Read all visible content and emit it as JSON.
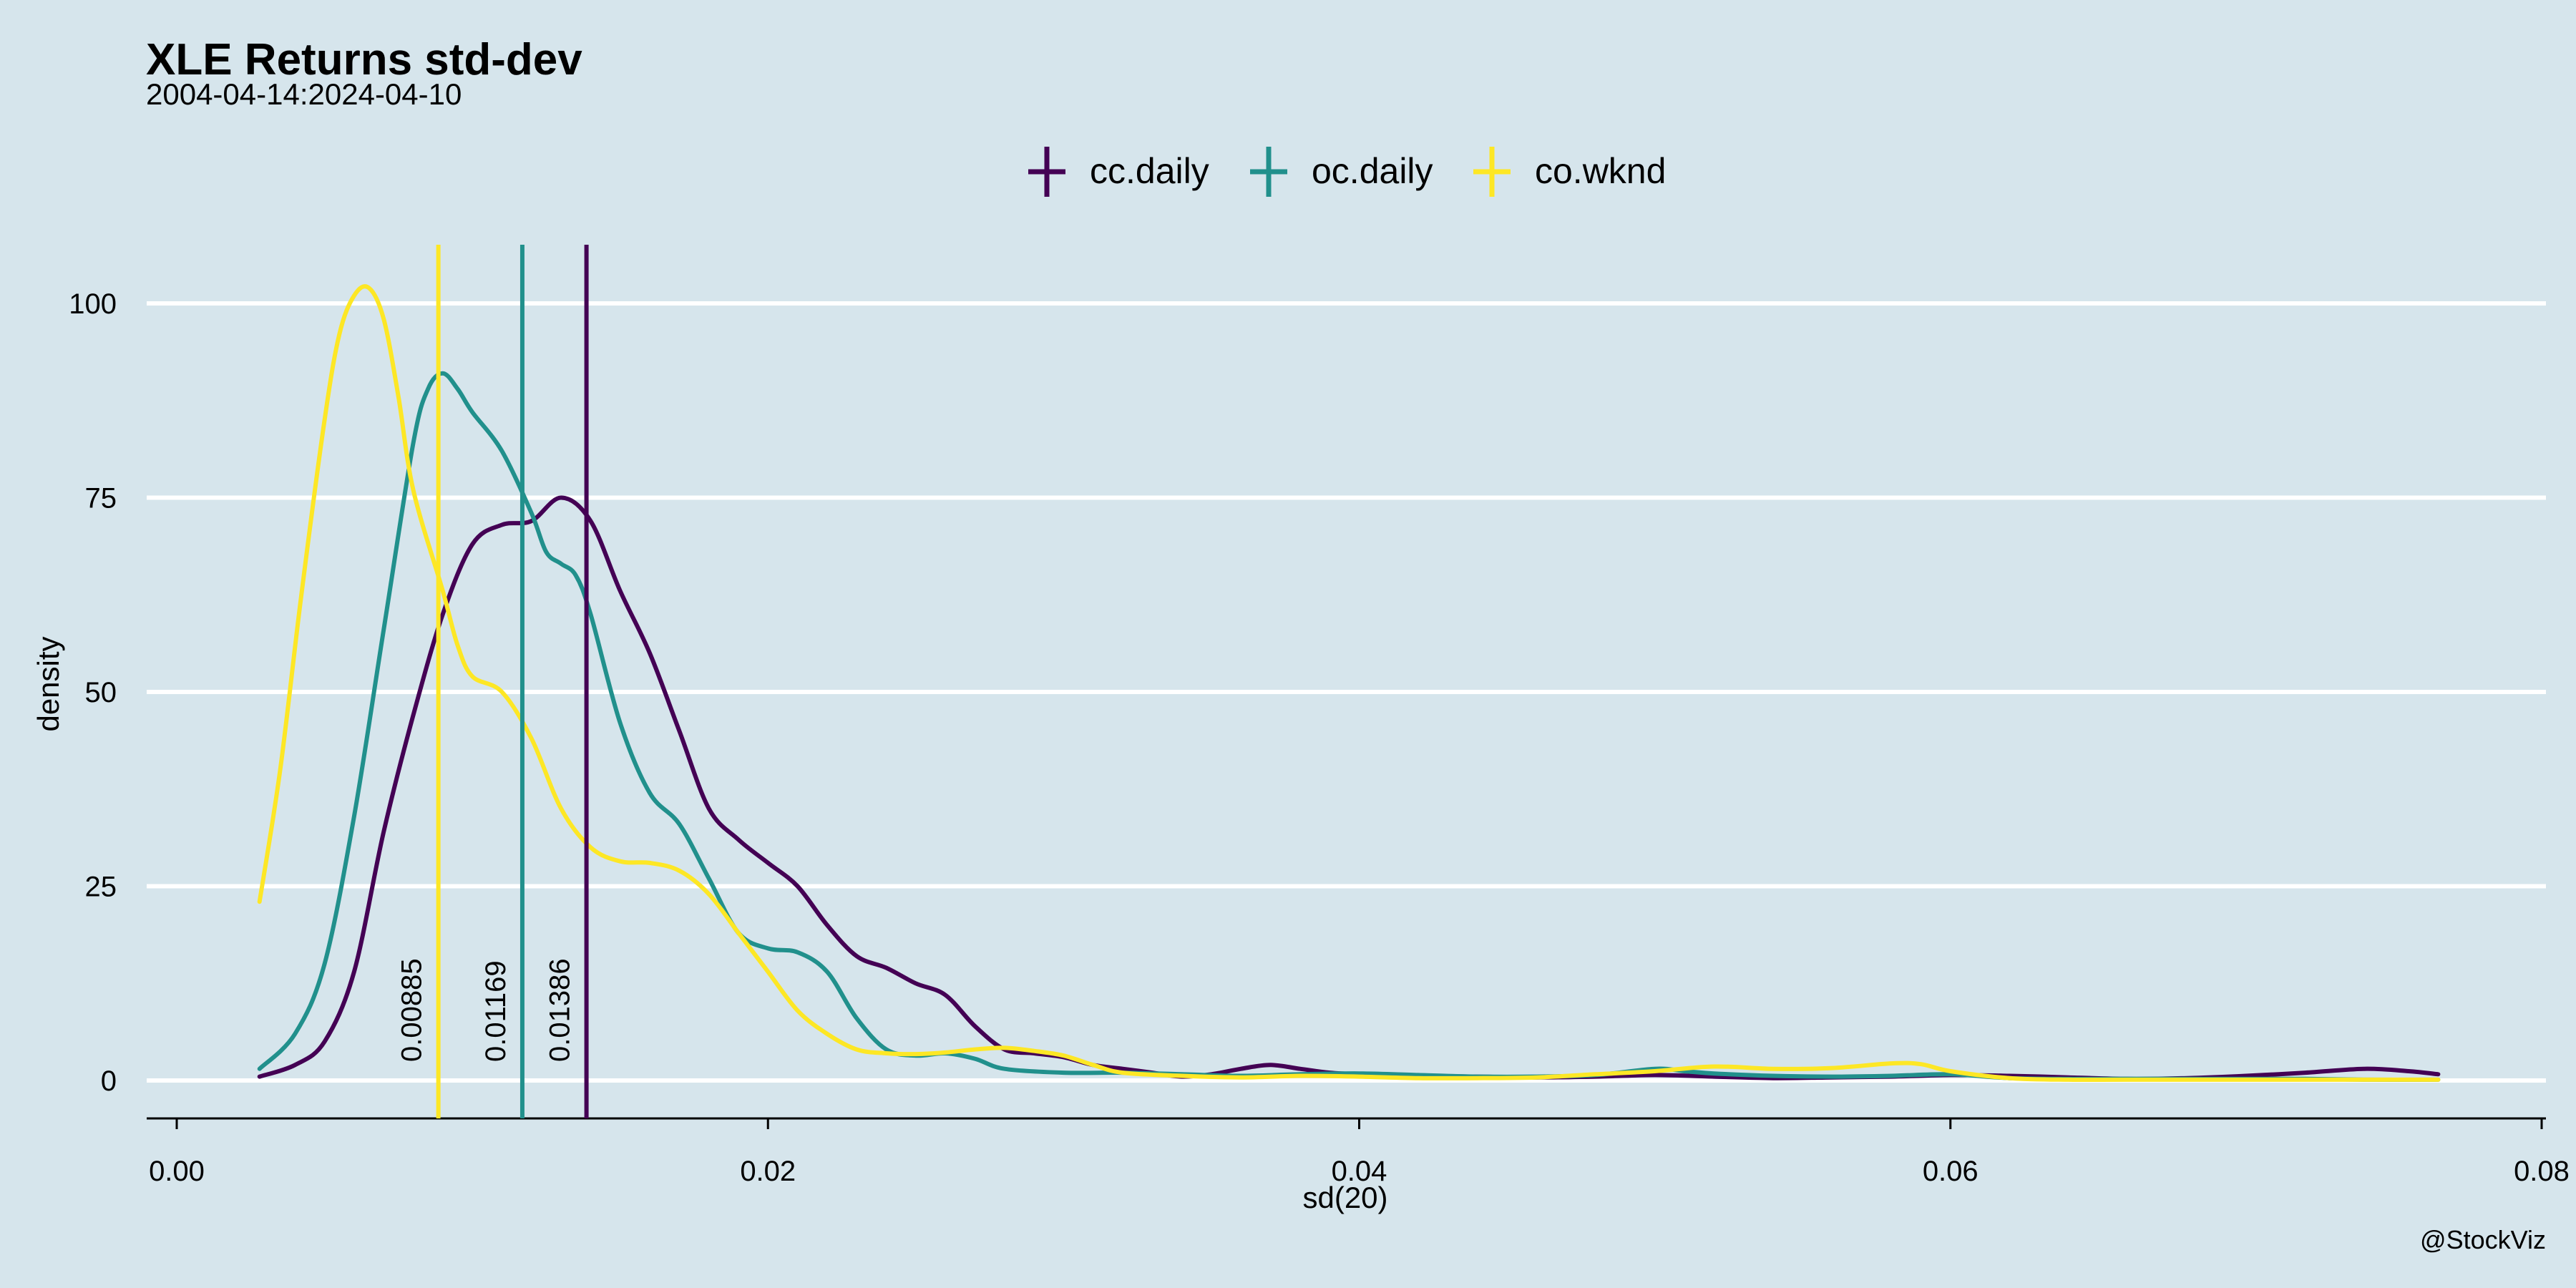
{
  "chart_data": {
    "type": "line",
    "title": "XLE Returns std-dev",
    "subtitle": "2004-04-14:2024-04-10",
    "xlabel": "sd(20)",
    "ylabel": "density",
    "caption": "@StockViz",
    "xlim": [
      0,
      0.08
    ],
    "ylim": [
      0,
      100
    ],
    "x_ticks": [
      0.0,
      0.02,
      0.04,
      0.06,
      0.08
    ],
    "x_tick_labels": [
      "0.00",
      "0.02",
      "0.04",
      "0.06",
      "0.08"
    ],
    "y_ticks": [
      0,
      25,
      50,
      75,
      100
    ],
    "y_tick_labels": [
      "0",
      "25",
      "50",
      "75",
      "100"
    ],
    "grid": "horizontal",
    "legend_position": "top",
    "series": [
      {
        "name": "cc.daily",
        "color": "#440154",
        "mean": 0.01386,
        "mean_label": "0.01386",
        "points": [
          [
            0.0028,
            0.5
          ],
          [
            0.004,
            2
          ],
          [
            0.005,
            5
          ],
          [
            0.006,
            14
          ],
          [
            0.007,
            32
          ],
          [
            0.008,
            47
          ],
          [
            0.009,
            60
          ],
          [
            0.01,
            69
          ],
          [
            0.011,
            71.5
          ],
          [
            0.012,
            72
          ],
          [
            0.013,
            75
          ],
          [
            0.014,
            72
          ],
          [
            0.015,
            63
          ],
          [
            0.016,
            55
          ],
          [
            0.017,
            45
          ],
          [
            0.018,
            35
          ],
          [
            0.019,
            31
          ],
          [
            0.02,
            28
          ],
          [
            0.021,
            25
          ],
          [
            0.022,
            20
          ],
          [
            0.023,
            16
          ],
          [
            0.024,
            14.5
          ],
          [
            0.025,
            12.5
          ],
          [
            0.026,
            11
          ],
          [
            0.027,
            7
          ],
          [
            0.028,
            4
          ],
          [
            0.029,
            3.5
          ],
          [
            0.03,
            3
          ],
          [
            0.031,
            2
          ],
          [
            0.032,
            1.5
          ],
          [
            0.033,
            1
          ],
          [
            0.034,
            0.5
          ],
          [
            0.035,
            0.8
          ],
          [
            0.036,
            1.5
          ],
          [
            0.037,
            2
          ],
          [
            0.038,
            1.5
          ],
          [
            0.039,
            1
          ],
          [
            0.04,
            0.8
          ],
          [
            0.042,
            0.6
          ],
          [
            0.044,
            0.5
          ],
          [
            0.046,
            0.4
          ],
          [
            0.048,
            0.5
          ],
          [
            0.05,
            0.7
          ],
          [
            0.052,
            0.5
          ],
          [
            0.054,
            0.3
          ],
          [
            0.056,
            0.4
          ],
          [
            0.058,
            0.5
          ],
          [
            0.06,
            0.7
          ],
          [
            0.062,
            0.6
          ],
          [
            0.064,
            0.4
          ],
          [
            0.066,
            0.2
          ],
          [
            0.068,
            0.3
          ],
          [
            0.07,
            0.6
          ],
          [
            0.072,
            1
          ],
          [
            0.074,
            1.5
          ],
          [
            0.0755,
            1.2
          ],
          [
            0.0765,
            0.8
          ]
        ]
      },
      {
        "name": "oc.daily",
        "color": "#21908c",
        "mean": 0.01169,
        "mean_label": "0.01169",
        "points": [
          [
            0.0028,
            1.5
          ],
          [
            0.004,
            6
          ],
          [
            0.005,
            15
          ],
          [
            0.006,
            34
          ],
          [
            0.007,
            58
          ],
          [
            0.008,
            82
          ],
          [
            0.0085,
            89
          ],
          [
            0.009,
            91
          ],
          [
            0.0095,
            89
          ],
          [
            0.01,
            86
          ],
          [
            0.011,
            81
          ],
          [
            0.012,
            73
          ],
          [
            0.0125,
            68
          ],
          [
            0.013,
            66.5
          ],
          [
            0.0135,
            65
          ],
          [
            0.014,
            60
          ],
          [
            0.015,
            46
          ],
          [
            0.016,
            37
          ],
          [
            0.017,
            33
          ],
          [
            0.018,
            26
          ],
          [
            0.019,
            19
          ],
          [
            0.02,
            17
          ],
          [
            0.021,
            16.5
          ],
          [
            0.022,
            14
          ],
          [
            0.023,
            8
          ],
          [
            0.024,
            4
          ],
          [
            0.025,
            3.2
          ],
          [
            0.026,
            3.5
          ],
          [
            0.027,
            2.8
          ],
          [
            0.028,
            1.5
          ],
          [
            0.03,
            1
          ],
          [
            0.032,
            1
          ],
          [
            0.034,
            0.8
          ],
          [
            0.036,
            0.6
          ],
          [
            0.038,
            0.8
          ],
          [
            0.04,
            0.9
          ],
          [
            0.042,
            0.7
          ],
          [
            0.044,
            0.5
          ],
          [
            0.046,
            0.5
          ],
          [
            0.048,
            0.7
          ],
          [
            0.05,
            1.5
          ],
          [
            0.051,
            1.2
          ],
          [
            0.052,
            0.9
          ],
          [
            0.054,
            0.6
          ],
          [
            0.056,
            0.5
          ],
          [
            0.058,
            0.6
          ],
          [
            0.06,
            0.8
          ],
          [
            0.062,
            0.3
          ],
          [
            0.064,
            0.2
          ],
          [
            0.066,
            0.2
          ],
          [
            0.068,
            0.2
          ],
          [
            0.07,
            0.2
          ],
          [
            0.072,
            0.2
          ],
          [
            0.074,
            0.1
          ],
          [
            0.0765,
            0.1
          ]
        ]
      },
      {
        "name": "co.wknd",
        "color": "#fde725",
        "mean": 0.00885,
        "mean_label": "0.00885",
        "points": [
          [
            0.0028,
            23
          ],
          [
            0.0035,
            40
          ],
          [
            0.0042,
            62
          ],
          [
            0.005,
            85
          ],
          [
            0.0055,
            96
          ],
          [
            0.006,
            101
          ],
          [
            0.0065,
            102
          ],
          [
            0.007,
            98
          ],
          [
            0.0075,
            88
          ],
          [
            0.008,
            76
          ],
          [
            0.009,
            63
          ],
          [
            0.0095,
            56
          ],
          [
            0.01,
            52
          ],
          [
            0.011,
            50
          ],
          [
            0.012,
            44
          ],
          [
            0.013,
            35
          ],
          [
            0.014,
            30
          ],
          [
            0.015,
            28.2
          ],
          [
            0.016,
            28
          ],
          [
            0.017,
            27
          ],
          [
            0.018,
            24
          ],
          [
            0.019,
            19
          ],
          [
            0.02,
            14
          ],
          [
            0.021,
            9
          ],
          [
            0.022,
            6
          ],
          [
            0.023,
            4
          ],
          [
            0.024,
            3.5
          ],
          [
            0.025,
            3.4
          ],
          [
            0.026,
            3.6
          ],
          [
            0.027,
            4
          ],
          [
            0.028,
            4.2
          ],
          [
            0.029,
            3.8
          ],
          [
            0.03,
            3.2
          ],
          [
            0.031,
            2
          ],
          [
            0.032,
            1
          ],
          [
            0.034,
            0.6
          ],
          [
            0.036,
            0.4
          ],
          [
            0.038,
            0.6
          ],
          [
            0.04,
            0.5
          ],
          [
            0.042,
            0.3
          ],
          [
            0.044,
            0.3
          ],
          [
            0.046,
            0.4
          ],
          [
            0.048,
            0.8
          ],
          [
            0.05,
            1.2
          ],
          [
            0.052,
            1.8
          ],
          [
            0.054,
            1.5
          ],
          [
            0.056,
            1.6
          ],
          [
            0.058,
            2.2
          ],
          [
            0.059,
            2.1
          ],
          [
            0.06,
            1.2
          ],
          [
            0.062,
            0.3
          ],
          [
            0.064,
            0.1
          ],
          [
            0.066,
            0.1
          ],
          [
            0.07,
            0.1
          ],
          [
            0.0765,
            0.1
          ]
        ]
      }
    ]
  }
}
